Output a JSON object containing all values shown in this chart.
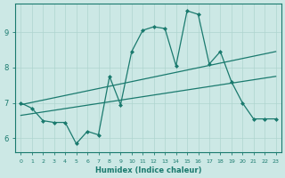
{
  "xlabel": "Humidex (Indice chaleur)",
  "bg_color": "#cce8e5",
  "line_color": "#1a7a6e",
  "grid_color": "#aed4cf",
  "xlim": [
    -0.5,
    23.5
  ],
  "ylim": [
    5.6,
    9.8
  ],
  "yticks": [
    6,
    7,
    8,
    9
  ],
  "xticks": [
    0,
    1,
    2,
    3,
    4,
    5,
    6,
    7,
    8,
    9,
    10,
    11,
    12,
    13,
    14,
    15,
    16,
    17,
    18,
    19,
    20,
    21,
    22,
    23
  ],
  "series1_x": [
    0,
    1,
    2,
    3,
    4,
    5,
    6,
    7,
    8,
    9,
    10,
    11,
    12,
    13,
    14,
    15,
    16,
    17,
    18,
    19,
    20,
    21,
    22,
    23
  ],
  "series1_y": [
    7.0,
    6.85,
    6.5,
    6.45,
    6.45,
    5.85,
    6.2,
    6.1,
    7.75,
    6.95,
    8.45,
    9.05,
    9.15,
    9.1,
    8.05,
    9.6,
    9.5,
    8.1,
    8.45,
    7.6,
    7.0,
    6.55,
    6.55,
    6.55
  ],
  "line2_x": [
    0,
    23
  ],
  "line2_y": [
    6.95,
    8.45
  ],
  "line3_x": [
    0,
    23
  ],
  "line3_y": [
    6.65,
    7.75
  ]
}
